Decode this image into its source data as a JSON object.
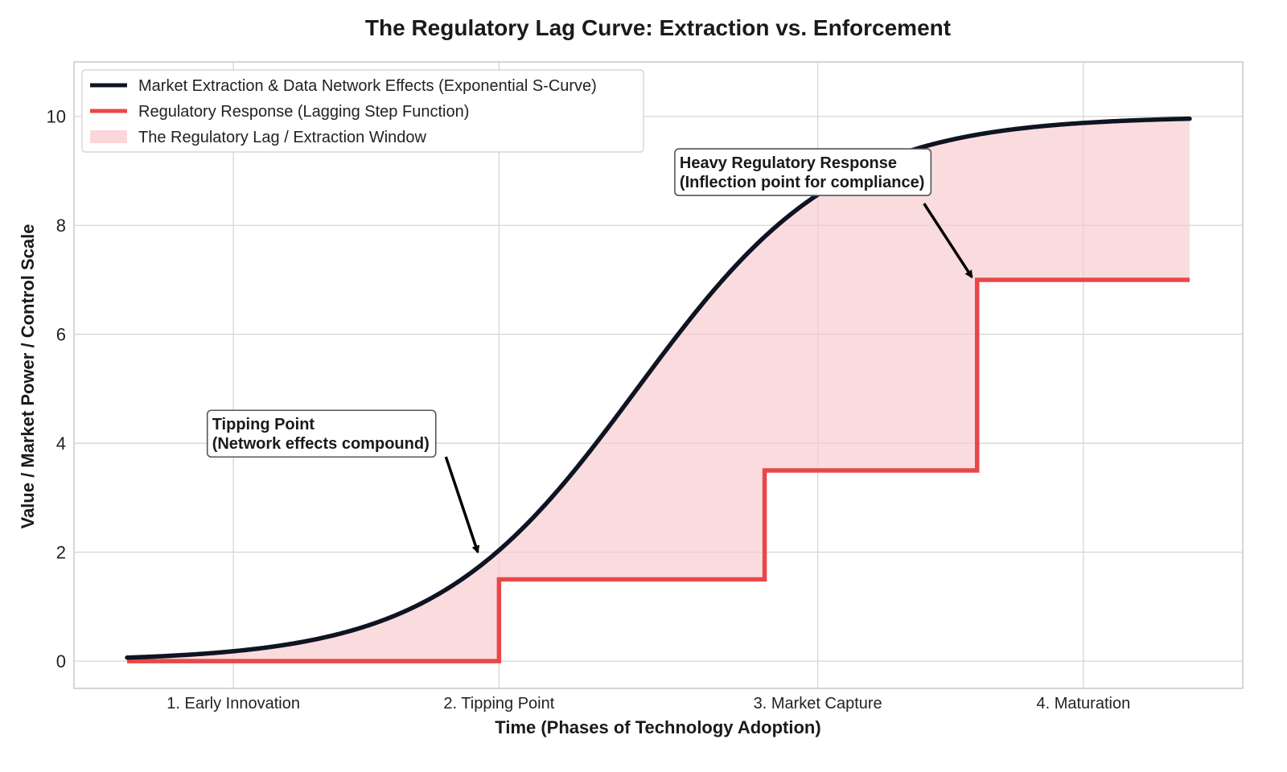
{
  "chart_data": {
    "type": "line",
    "title": "The Regulatory Lag Curve: Extraction vs. Enforcement",
    "xlabel": "Time (Phases of Technology Adoption)",
    "ylabel": "Value / Market Power / Control Scale",
    "xlim": [
      -0.5,
      10.5
    ],
    "ylim": [
      -0.5,
      11
    ],
    "yticks": [
      0,
      2,
      4,
      6,
      8,
      10
    ],
    "xticks": [
      {
        "x": 1,
        "label": "1. Early Innovation"
      },
      {
        "x": 3.5,
        "label": "2. Tipping Point"
      },
      {
        "x": 6.5,
        "label": "3. Market Capture"
      },
      {
        "x": 9,
        "label": "4. Maturation"
      }
    ],
    "grid": true,
    "legend_position": "top-left",
    "series": [
      {
        "name": "Market Extraction & Data Network Effects (Exponential S-Curve)",
        "kind": "logistic",
        "x_range": [
          0,
          10
        ],
        "L": 10,
        "k": 1.05,
        "x0": 4.8,
        "color": "#0f1422"
      },
      {
        "name": "Regulatory Response (Lagging Step Function)",
        "kind": "step",
        "steps": [
          {
            "x": 0,
            "y": 0
          },
          {
            "x": 3.5,
            "y": 1.5
          },
          {
            "x": 6.0,
            "y": 3.5
          },
          {
            "x": 8.0,
            "y": 7.0
          }
        ],
        "x_end": 10,
        "color": "#e8474a"
      }
    ],
    "fill": {
      "name": "The Regulatory Lag / Extraction Window",
      "color": "#f9c9cc"
    },
    "annotations": [
      {
        "lines": [
          "Tipping Point",
          "(Network effects compound)"
        ],
        "text_xy": [
          0.8,
          4.25
        ],
        "arrow_from": [
          3.0,
          3.75
        ],
        "arrow_to": [
          3.3,
          2.0
        ]
      },
      {
        "lines": [
          "Heavy Regulatory Response",
          "(Inflection point for compliance)"
        ],
        "text_xy": [
          5.2,
          9.05
        ],
        "arrow_from": [
          7.5,
          8.4
        ],
        "arrow_to": [
          7.95,
          7.05
        ]
      }
    ]
  }
}
